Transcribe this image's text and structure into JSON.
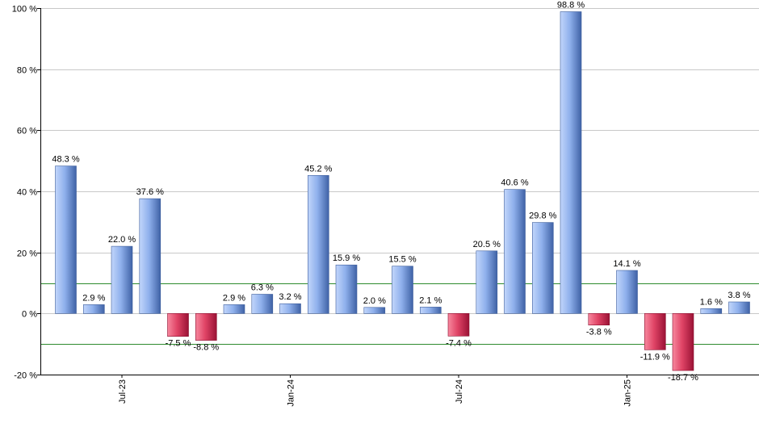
{
  "chart_data": {
    "type": "bar",
    "title": "",
    "xlabel": "",
    "ylabel": "",
    "ylim": [
      -20,
      100
    ],
    "yticks": [
      -20,
      0,
      20,
      40,
      60,
      80,
      100
    ],
    "ytick_suffix": " %",
    "grid": true,
    "reference_lines": [
      10,
      -10
    ],
    "x_tick_labels": [
      {
        "label": "Jul-23",
        "index": 2
      },
      {
        "label": "Jan-24",
        "index": 8
      },
      {
        "label": "Jul-24",
        "index": 14
      },
      {
        "label": "Jan-25",
        "index": 20
      }
    ],
    "values": [
      48.3,
      2.9,
      22.0,
      37.6,
      -7.5,
      -8.8,
      2.9,
      6.3,
      3.2,
      45.2,
      15.9,
      2.0,
      15.5,
      2.1,
      -7.4,
      20.5,
      40.6,
      29.8,
      98.8,
      -3.8,
      14.1,
      -11.9,
      -18.7,
      1.6,
      3.8
    ],
    "value_labels": [
      "48.3 %",
      "2.9 %",
      "22.0 %",
      "37.6 %",
      "-7.5 %",
      "-8.8 %",
      "2.9 %",
      "6.3 %",
      "3.2 %",
      "45.2 %",
      "15.9 %",
      "2.0 %",
      "15.5 %",
      "2.1 %",
      "-7.4 %",
      "20.5 %",
      "40.6 %",
      "29.8 %",
      "98.8 %",
      "-3.8 %",
      "14.1 %",
      "-11.9 %",
      "-18.7 %",
      "1.6 %",
      "3.8 %"
    ],
    "colors": {
      "positive_light": "#a9c4f5",
      "positive_dark": "#4a6fb5",
      "negative_light": "#f06a86",
      "negative_dark": "#a8183c",
      "grid": "#c8c8c8",
      "reference_line": "#2e8b2e",
      "axis": "#000000"
    }
  }
}
